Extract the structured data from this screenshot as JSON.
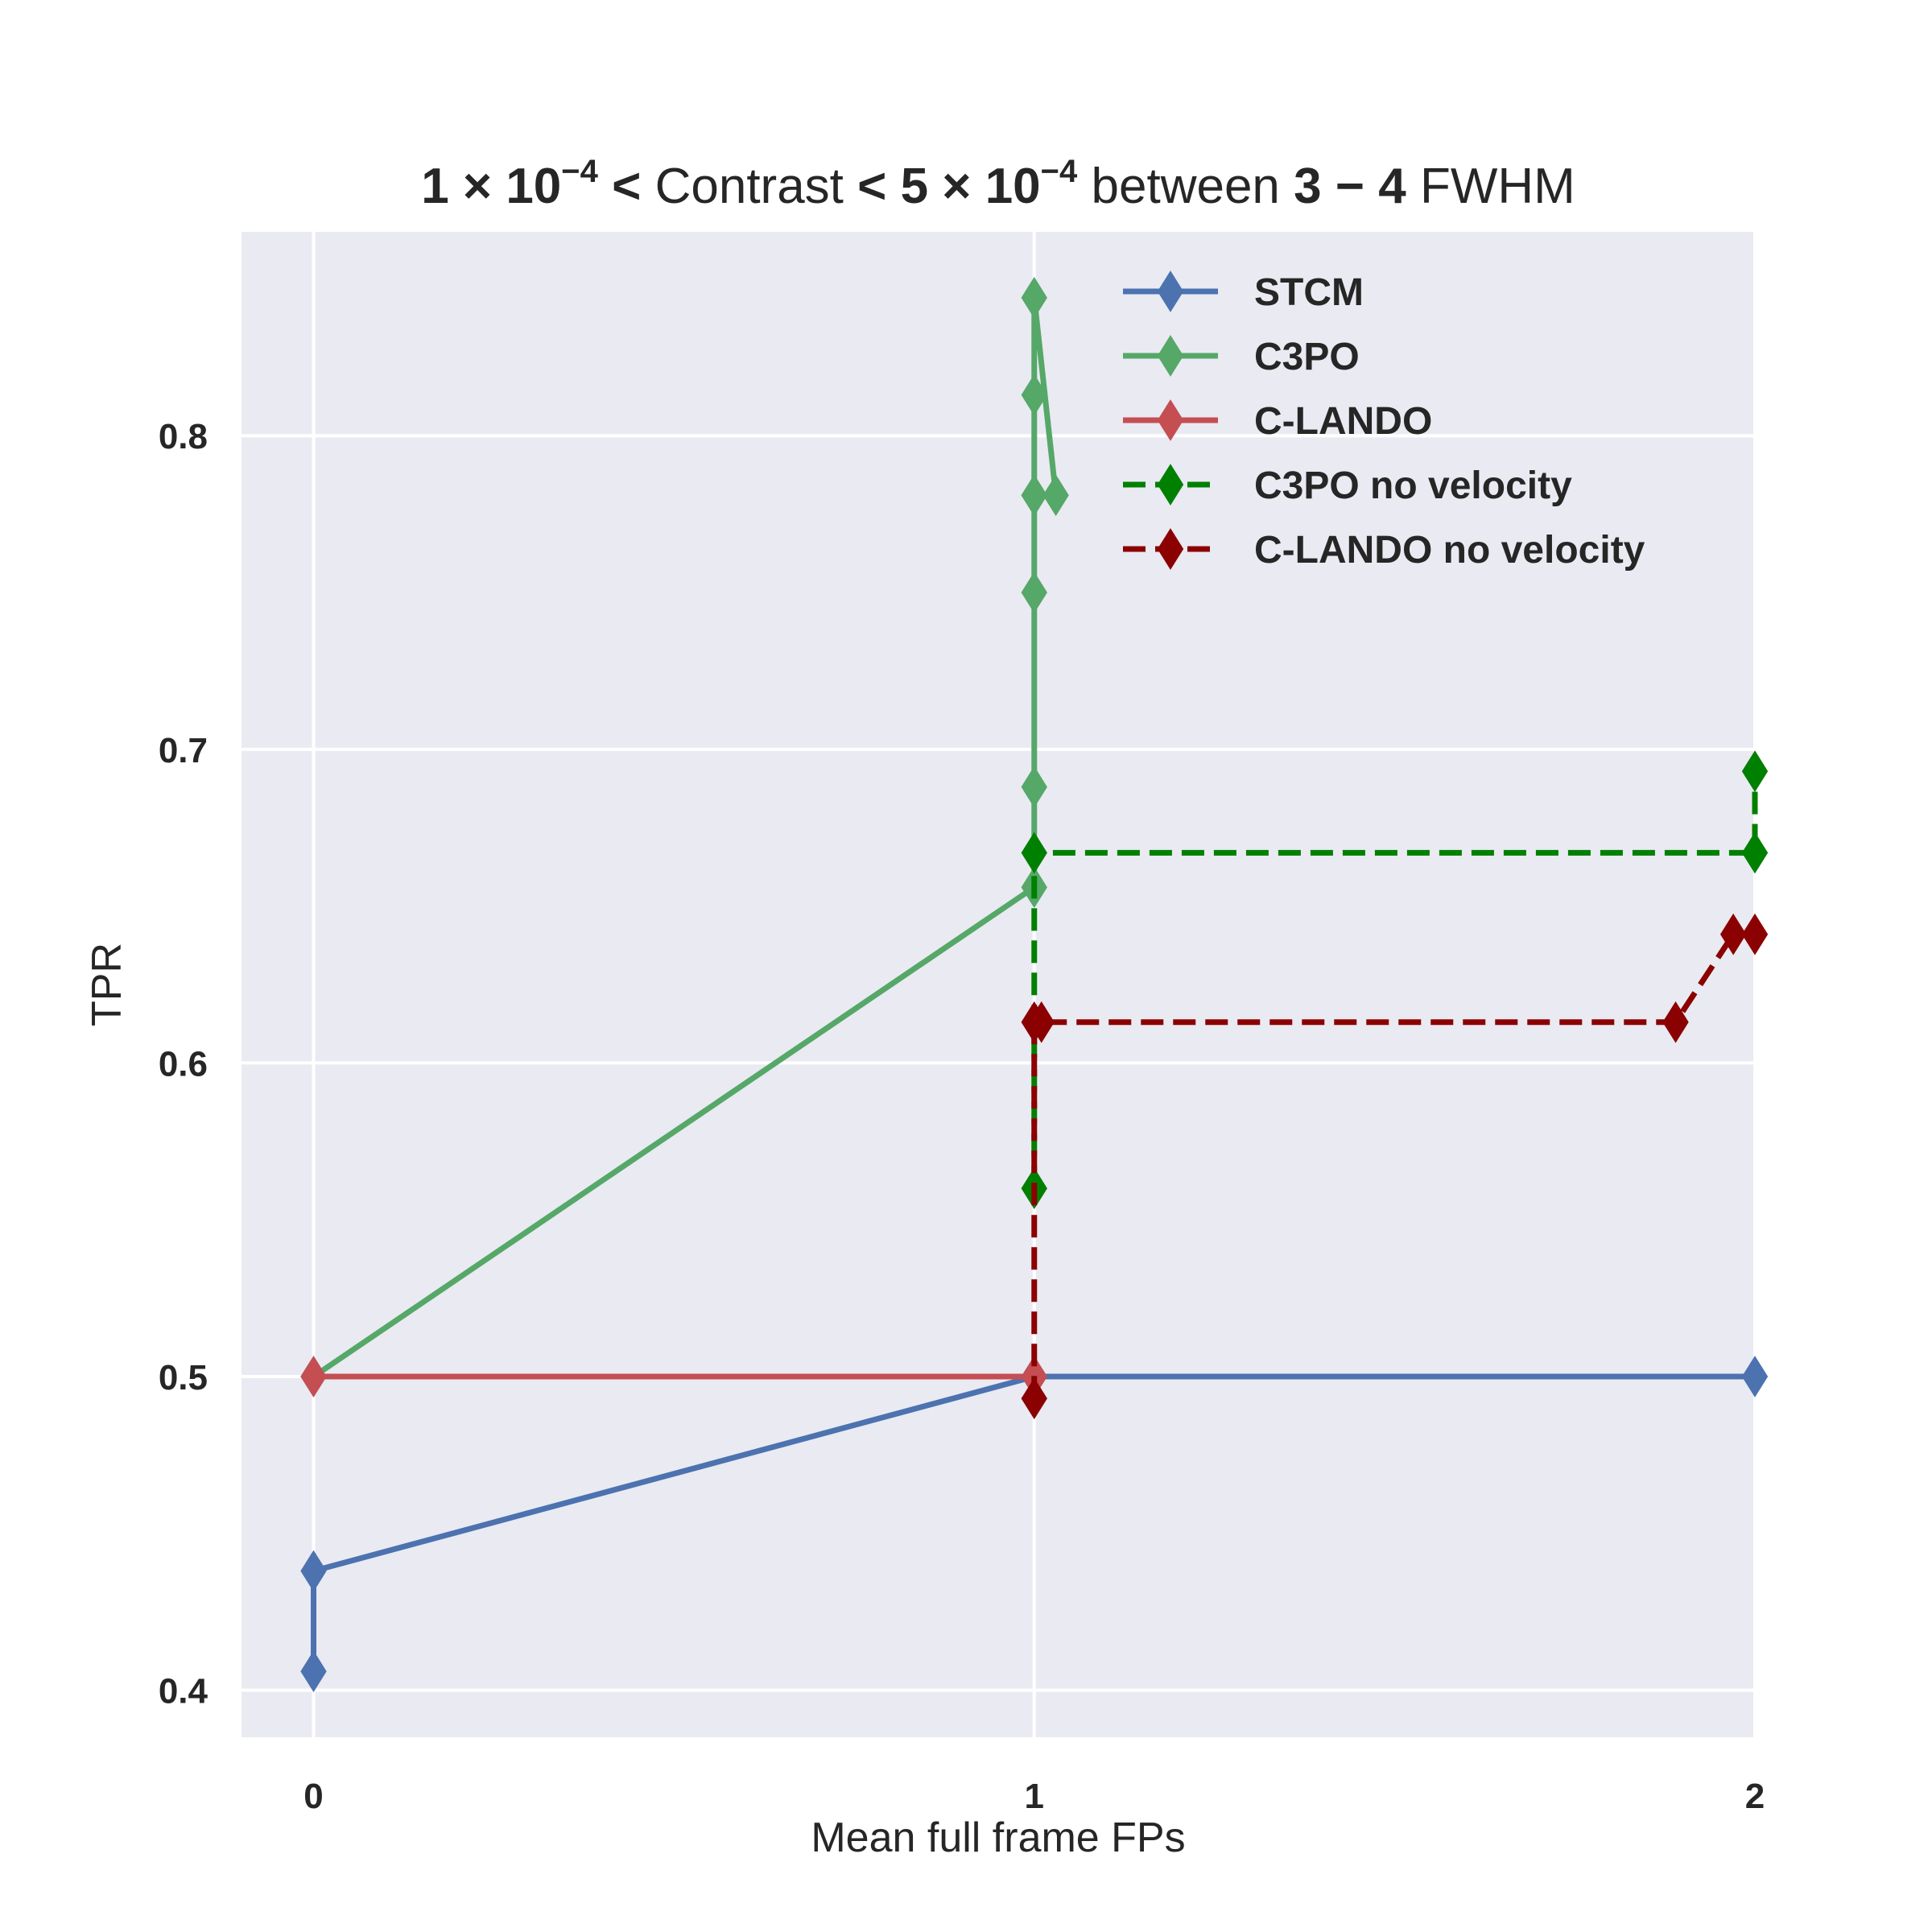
{
  "chart_data": {
    "type": "line",
    "title": {
      "parts": [
        {
          "text": "1 × 10",
          "bold": true
        },
        {
          "text": "−4",
          "bold": true,
          "sup": true
        },
        {
          "text": " < ",
          "bold": true
        },
        {
          "text": "Contrast",
          "bold": false
        },
        {
          "text": " < 5 × 10",
          "bold": true
        },
        {
          "text": "−4",
          "bold": true,
          "sup": true
        },
        {
          "text": " between ",
          "bold": false
        },
        {
          "text": "3 − 4",
          "bold": true
        },
        {
          "text": " FWHM",
          "bold": false
        }
      ]
    },
    "xlabel": "Mean full frame FPs",
    "ylabel": "TPR",
    "xlim": [
      -0.1,
      2.0
    ],
    "ylim": [
      0.385,
      0.865
    ],
    "xticks": [
      0,
      1,
      2
    ],
    "yticks": [
      0.4,
      0.5,
      0.6,
      0.7,
      0.8
    ],
    "ytick_labels": [
      "0.4",
      "0.5",
      "0.6",
      "0.7",
      "0.8"
    ],
    "grid": true,
    "legend_position": "top-right",
    "series": [
      {
        "name": "STCM",
        "color": "#4c72b0",
        "style": "solid",
        "marker": "diamond",
        "x": [
          0,
          0,
          1,
          2
        ],
        "y": [
          0.406,
          0.438,
          0.5,
          0.5
        ]
      },
      {
        "name": "C3PO",
        "color": "#55a868",
        "style": "solid",
        "marker": "diamond",
        "x": [
          0,
          1,
          1,
          1,
          1,
          1,
          1,
          1.03,
          1
        ],
        "y": [
          0.5,
          0.656,
          0.688,
          0.75,
          0.781,
          0.813,
          0.844,
          0.781,
          0.781
        ]
      },
      {
        "name": "C-LANDO",
        "color": "#c44e52",
        "style": "solid",
        "marker": "diamond",
        "x": [
          0,
          1
        ],
        "y": [
          0.5,
          0.5
        ]
      },
      {
        "name": "C3PO no velocity",
        "color": "#008000",
        "style": "dashed",
        "marker": "diamond",
        "x": [
          1,
          1,
          2,
          2
        ],
        "y": [
          0.56,
          0.667,
          0.667,
          0.693
        ]
      },
      {
        "name": "C-LANDO no velocity",
        "color": "#8b0000",
        "style": "dashed",
        "marker": "diamond",
        "x": [
          1,
          1,
          1.01,
          1.89,
          1.97,
          2.0
        ],
        "y": [
          0.493,
          0.613,
          0.613,
          0.613,
          0.641,
          0.641
        ]
      }
    ]
  }
}
